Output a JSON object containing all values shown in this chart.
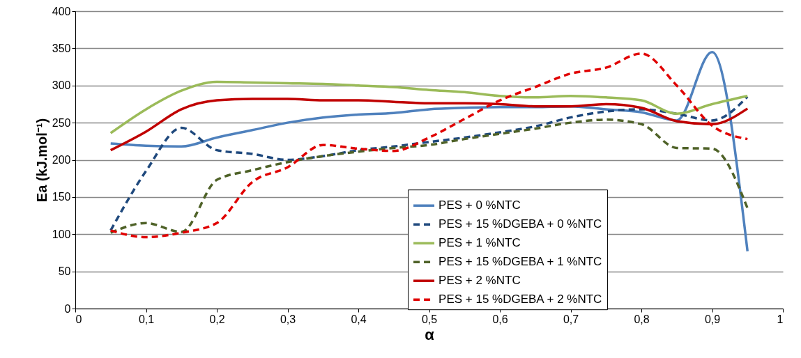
{
  "chart_data": {
    "type": "line",
    "xlabel": "α",
    "ylabel": "Ea (kJ.mol⁻¹)",
    "x": [
      0.05,
      0.1,
      0.15,
      0.2,
      0.25,
      0.3,
      0.35,
      0.4,
      0.45,
      0.5,
      0.55,
      0.6,
      0.65,
      0.7,
      0.75,
      0.8,
      0.85,
      0.9,
      0.95
    ],
    "series": [
      {
        "name": "PES + 0 %NTC",
        "color": "#4f81bd",
        "line_style": "solid",
        "values": [
          222,
          219,
          218,
          230,
          240,
          250,
          257,
          261,
          263,
          268,
          270,
          271,
          271,
          272,
          268,
          264,
          253,
          345,
          77
        ]
      },
      {
        "name": "PES + 15 %DGEBA + 0 %NTC",
        "color": "#1f497d",
        "line_style": "dashed",
        "values": [
          105,
          185,
          243,
          213,
          208,
          200,
          205,
          213,
          218,
          224,
          230,
          237,
          245,
          257,
          265,
          268,
          262,
          253,
          285
        ]
      },
      {
        "name": "PES + 1 %NTC",
        "color": "#9bbb59",
        "line_style": "solid",
        "values": [
          236,
          268,
          293,
          305,
          304,
          303,
          302,
          300,
          298,
          294,
          291,
          286,
          284,
          286,
          284,
          280,
          262,
          275,
          286
        ]
      },
      {
        "name": "PES + 15 %DGEBA + 1 %NTC",
        "color": "#4f6228",
        "line_style": "dashed",
        "values": [
          102,
          115,
          103,
          173,
          186,
          197,
          205,
          211,
          216,
          220,
          228,
          235,
          242,
          250,
          254,
          248,
          216,
          215,
          135
        ]
      },
      {
        "name": "PES + 2 %NTC",
        "color": "#c00000",
        "line_style": "solid",
        "values": [
          213,
          238,
          268,
          280,
          282,
          282,
          280,
          280,
          278,
          276,
          276,
          275,
          272,
          272,
          275,
          270,
          252,
          248,
          269
        ]
      },
      {
        "name": "PES + 15 %DGEBA + 2 %NTC",
        "color": "#e00000",
        "line_style": "dashed",
        "values": [
          105,
          96,
          102,
          115,
          170,
          190,
          220,
          215,
          212,
          230,
          255,
          280,
          298,
          316,
          324,
          343,
          300,
          246,
          228
        ]
      }
    ],
    "xlim": [
      0,
      1
    ],
    "xticks": [
      0,
      {
        "value": 0.1,
        "label": "0,1"
      },
      {
        "value": 0.2,
        "label": "0,2"
      },
      {
        "value": 0.3,
        "label": "0,3"
      },
      {
        "value": 0.4,
        "label": "0,4"
      },
      {
        "value": 0.5,
        "label": "0,5"
      },
      {
        "value": 0.6,
        "label": "0,6"
      },
      {
        "value": 0.7,
        "label": "0,7"
      },
      {
        "value": 0.8,
        "label": "0,8"
      },
      {
        "value": 0.9,
        "label": "0,9"
      },
      1
    ],
    "ylim": [
      0,
      400
    ],
    "yticks": [
      0,
      50,
      100,
      150,
      200,
      250,
      300,
      350,
      400
    ],
    "grid": "y",
    "legend": "bottom",
    "marker": "none"
  }
}
